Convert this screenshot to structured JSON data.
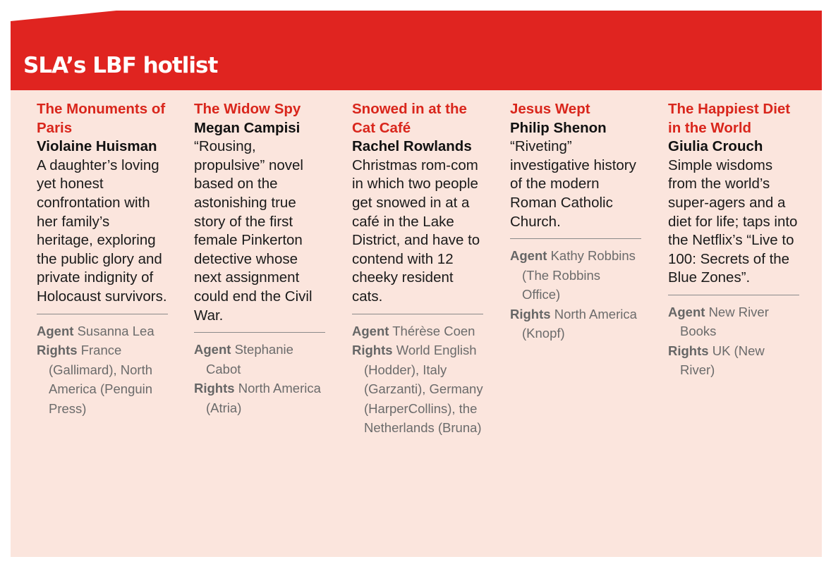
{
  "header": {
    "title": "SLA’s LBF hotlist"
  },
  "labels": {
    "agent": "Agent",
    "rights": "Rights"
  },
  "columns": [
    {
      "title": "The Monuments of Paris",
      "author": "Violaine Huisman",
      "description": "A daughter’s loving yet honest confrontation with her family’s heritage, exploring the public glory and private indignity of Holocaust survivors.",
      "agent": "Susanna Lea",
      "rights": "France (Gallimard), North America (Penguin Press)"
    },
    {
      "title": "The Widow Spy",
      "author": "Megan Campisi",
      "description": "“Rousing, propulsive” novel based on the astonishing true story of the first female Pinkerton detective whose next assignment could end the Civil War.",
      "agent": "Stephanie Cabot",
      "rights": "North America (Atria)"
    },
    {
      "title": "Snowed in at the Cat Café",
      "author": "Rachel Rowlands",
      "description": "Christmas rom-com in which two people get snowed in at a café in the Lake District, and have to contend with 12 cheeky resident cats.",
      "agent": "Thérèse Coen",
      "rights": "World English (Hodder), Italy (Garzanti), Germany (HarperCollins), the Netherlands (Bruna)"
    },
    {
      "title": "Jesus Wept",
      "author": "Philip Shenon",
      "description": "“Riveting” investigative history of the modern Roman Catholic Church.",
      "agent": "Kathy Robbins (The Robbins Office)",
      "rights": "North America (Knopf)"
    },
    {
      "title": "The Happiest Diet in the World",
      "author": "Giulia Crouch",
      "description": "Simple wisdoms from the world’s super-agers and a diet for life; taps into the Netflix’s “Live to 100: Secrets of the Blue Zones”.",
      "agent": "New River Books",
      "rights": "UK (New River)"
    }
  ]
}
